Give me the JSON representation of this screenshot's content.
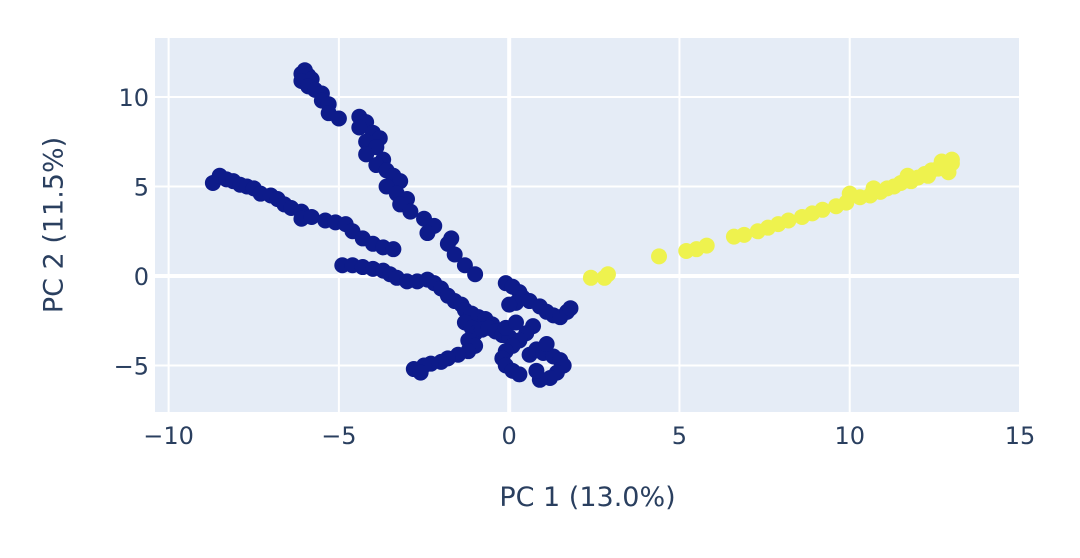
{
  "chart_data": {
    "type": "scatter",
    "xlabel": "PC 1 (13.0%)",
    "ylabel": "PC 2 (11.5%)",
    "xlim": [
      -10.4,
      15.0
    ],
    "ylim": [
      -7.6,
      13.3
    ],
    "xticks": [
      -10,
      -5,
      0,
      5,
      10,
      15
    ],
    "xtick_labels": [
      "−10",
      "−5",
      "0",
      "5",
      "10",
      "15"
    ],
    "yticks": [
      -5,
      0,
      5,
      10
    ],
    "ytick_labels": [
      "−5",
      "0",
      "5",
      "10"
    ],
    "grid": true,
    "legend": "none",
    "plot_background": "#e5ecf6",
    "grid_color": "#ffffff",
    "series": [
      {
        "color": "#0d1b8a",
        "points": [
          [
            -6.1,
            11.3
          ],
          [
            -6.0,
            11.5
          ],
          [
            -5.9,
            11.2
          ],
          [
            -5.8,
            11.0
          ],
          [
            -6.1,
            10.9
          ],
          [
            -5.9,
            10.6
          ],
          [
            -5.7,
            10.4
          ],
          [
            -5.5,
            10.2
          ],
          [
            -5.5,
            9.8
          ],
          [
            -5.3,
            9.6
          ],
          [
            -5.3,
            9.1
          ],
          [
            -5.0,
            8.8
          ],
          [
            -4.4,
            8.9
          ],
          [
            -4.2,
            8.6
          ],
          [
            -4.4,
            8.3
          ],
          [
            -4.0,
            8.0
          ],
          [
            -3.8,
            7.7
          ],
          [
            -4.2,
            7.5
          ],
          [
            -3.9,
            7.2
          ],
          [
            -4.2,
            6.8
          ],
          [
            -3.7,
            6.5
          ],
          [
            -3.9,
            6.2
          ],
          [
            -3.6,
            5.9
          ],
          [
            -3.4,
            5.6
          ],
          [
            -3.2,
            5.3
          ],
          [
            -3.6,
            5.0
          ],
          [
            -3.3,
            4.6
          ],
          [
            -3.0,
            4.3
          ],
          [
            -3.2,
            4.0
          ],
          [
            -2.9,
            3.6
          ],
          [
            -2.5,
            3.2
          ],
          [
            -2.2,
            2.8
          ],
          [
            -2.4,
            2.4
          ],
          [
            -1.7,
            2.1
          ],
          [
            -1.8,
            1.8
          ],
          [
            -1.6,
            1.2
          ],
          [
            -1.3,
            0.6
          ],
          [
            -1.0,
            0.1
          ],
          [
            -8.7,
            5.2
          ],
          [
            -8.5,
            5.6
          ],
          [
            -8.3,
            5.4
          ],
          [
            -8.1,
            5.3
          ],
          [
            -7.9,
            5.1
          ],
          [
            -7.7,
            5.0
          ],
          [
            -7.5,
            4.9
          ],
          [
            -7.3,
            4.6
          ],
          [
            -7.0,
            4.5
          ],
          [
            -6.8,
            4.3
          ],
          [
            -6.6,
            4.0
          ],
          [
            -6.4,
            3.8
          ],
          [
            -6.1,
            3.6
          ],
          [
            -6.1,
            3.2
          ],
          [
            -5.8,
            3.3
          ],
          [
            -5.4,
            3.1
          ],
          [
            -5.1,
            3.0
          ],
          [
            -4.8,
            2.9
          ],
          [
            -4.6,
            2.5
          ],
          [
            -4.3,
            2.1
          ],
          [
            -4.0,
            1.8
          ],
          [
            -3.7,
            1.6
          ],
          [
            -3.4,
            1.5
          ],
          [
            -4.9,
            0.6
          ],
          [
            -4.6,
            0.6
          ],
          [
            -4.3,
            0.5
          ],
          [
            -4.0,
            0.4
          ],
          [
            -3.7,
            0.3
          ],
          [
            -3.5,
            0.1
          ],
          [
            -3.3,
            -0.1
          ],
          [
            -3.0,
            -0.3
          ],
          [
            -2.7,
            -0.3
          ],
          [
            -2.4,
            -0.2
          ],
          [
            -2.2,
            -0.4
          ],
          [
            -2.0,
            -0.7
          ],
          [
            -1.8,
            -1.1
          ],
          [
            -1.6,
            -1.4
          ],
          [
            -1.4,
            -1.6
          ],
          [
            -1.3,
            -1.9
          ],
          [
            -1.1,
            -2.1
          ],
          [
            -0.9,
            -2.3
          ],
          [
            -0.7,
            -2.4
          ],
          [
            -0.5,
            -2.7
          ],
          [
            -1.3,
            -2.6
          ],
          [
            -1.1,
            -2.9
          ],
          [
            -1.0,
            -3.2
          ],
          [
            -0.8,
            -3.0
          ],
          [
            -0.6,
            -2.9
          ],
          [
            -0.4,
            -3.1
          ],
          [
            -0.2,
            -3.3
          ],
          [
            0.0,
            -3.4
          ],
          [
            -0.1,
            -2.9
          ],
          [
            0.2,
            -2.6
          ],
          [
            -1.2,
            -3.6
          ],
          [
            -1.0,
            -3.9
          ],
          [
            -1.2,
            -4.2
          ],
          [
            -1.5,
            -4.4
          ],
          [
            -1.8,
            -4.6
          ],
          [
            -2.0,
            -4.8
          ],
          [
            -2.3,
            -4.9
          ],
          [
            -2.5,
            -5.0
          ],
          [
            -2.8,
            -5.2
          ],
          [
            -2.6,
            -5.4
          ],
          [
            -0.1,
            -0.4
          ],
          [
            0.1,
            -0.6
          ],
          [
            0.3,
            -0.9
          ],
          [
            0.4,
            -1.2
          ],
          [
            0.2,
            -1.5
          ],
          [
            0.0,
            -1.6
          ],
          [
            0.6,
            -1.4
          ],
          [
            0.9,
            -1.7
          ],
          [
            1.1,
            -2.0
          ],
          [
            1.3,
            -2.2
          ],
          [
            1.5,
            -2.3
          ],
          [
            1.7,
            -2.0
          ],
          [
            1.8,
            -1.8
          ],
          [
            0.7,
            -2.8
          ],
          [
            0.5,
            -3.2
          ],
          [
            0.3,
            -3.6
          ],
          [
            0.1,
            -3.9
          ],
          [
            -0.1,
            -4.2
          ],
          [
            -0.2,
            -4.6
          ],
          [
            -0.1,
            -5.0
          ],
          [
            0.1,
            -5.3
          ],
          [
            0.3,
            -5.5
          ],
          [
            0.6,
            -4.4
          ],
          [
            0.8,
            -4.1
          ],
          [
            1.0,
            -4.3
          ],
          [
            1.3,
            -4.5
          ],
          [
            1.5,
            -4.7
          ],
          [
            1.6,
            -5.0
          ],
          [
            1.4,
            -5.4
          ],
          [
            1.2,
            -5.7
          ],
          [
            0.9,
            -5.8
          ],
          [
            0.8,
            -5.3
          ],
          [
            1.1,
            -3.8
          ]
        ]
      },
      {
        "color": "#eef24e",
        "points": [
          [
            2.4,
            -0.1
          ],
          [
            2.8,
            -0.1
          ],
          [
            2.9,
            0.1
          ],
          [
            4.4,
            1.1
          ],
          [
            5.2,
            1.4
          ],
          [
            5.5,
            1.5
          ],
          [
            5.8,
            1.7
          ],
          [
            6.6,
            2.2
          ],
          [
            6.9,
            2.3
          ],
          [
            7.3,
            2.5
          ],
          [
            7.6,
            2.7
          ],
          [
            7.9,
            2.9
          ],
          [
            8.2,
            3.1
          ],
          [
            8.6,
            3.3
          ],
          [
            8.9,
            3.5
          ],
          [
            9.2,
            3.7
          ],
          [
            9.6,
            3.9
          ],
          [
            9.9,
            4.1
          ],
          [
            10.0,
            4.6
          ],
          [
            10.3,
            4.4
          ],
          [
            10.6,
            4.5
          ],
          [
            10.9,
            4.7
          ],
          [
            11.1,
            4.9
          ],
          [
            11.3,
            5.0
          ],
          [
            11.5,
            5.2
          ],
          [
            11.8,
            5.3
          ],
          [
            12.0,
            5.5
          ],
          [
            12.2,
            5.7
          ],
          [
            12.4,
            5.9
          ],
          [
            12.6,
            6.0
          ],
          [
            12.8,
            6.1
          ],
          [
            13.0,
            6.3
          ],
          [
            13.0,
            6.5
          ],
          [
            12.7,
            6.4
          ],
          [
            12.3,
            5.6
          ],
          [
            12.9,
            5.8
          ],
          [
            11.7,
            5.6
          ],
          [
            10.7,
            4.9
          ]
        ]
      }
    ]
  }
}
